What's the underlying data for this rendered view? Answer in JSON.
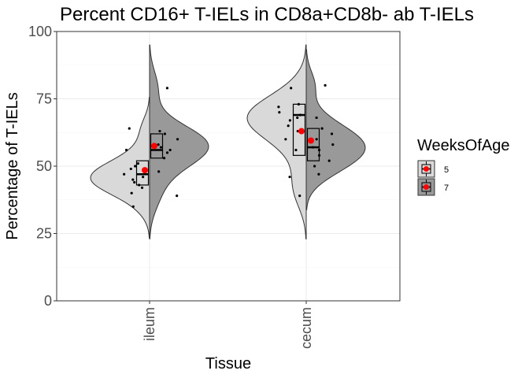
{
  "chart_data": {
    "type": "split-violin",
    "title": "Percent CD16+ T-IELs in CD8a+CD8b- ab T-IELs",
    "xlabel": "Tissue",
    "ylabel": "Percentage of T-IELs",
    "ylim": [
      0,
      100
    ],
    "yticks": [
      0,
      25,
      50,
      75,
      100
    ],
    "categories": [
      "ileum",
      "cecum"
    ],
    "grid": true,
    "legend": {
      "title": "WeeksOfAge",
      "placement": "right",
      "entries": [
        "5",
        "7"
      ]
    },
    "colors": {
      "5": "#d9d9d9",
      "7": "#999999",
      "mean": "#ff0000",
      "outline": "#333333"
    },
    "series": [
      {
        "name": "5",
        "groups": [
          {
            "category": "ileum",
            "violin_min": 35,
            "violin_max": 64,
            "violin_mode": 47,
            "box": {
              "q1": 43,
              "median": 47,
              "q3": 52
            },
            "mean": 48.5,
            "points": [
              35,
              40,
              42,
              43,
              44,
              45,
              46,
              47,
              49,
              50,
              51,
              56,
              64
            ]
          },
          {
            "category": "cecum",
            "violin_min": 39,
            "violin_max": 79,
            "violin_mode": 70,
            "box": {
              "q1": 54,
              "median": 69,
              "q3": 73
            },
            "mean": 63,
            "points": [
              39,
              46,
              56,
              60,
              63,
              65,
              67,
              68,
              69,
              70,
              72,
              73,
              79
            ]
          }
        ]
      },
      {
        "name": "7",
        "groups": [
          {
            "category": "ileum",
            "violin_min": 39,
            "violin_max": 79,
            "violin_mode": 58,
            "box": {
              "q1": 53,
              "median": 56,
              "q3": 62
            },
            "mean": 57.5,
            "points": [
              39,
              48,
              53,
              55,
              56,
              57,
              58,
              60,
              62,
              63,
              79
            ]
          },
          {
            "category": "cecum",
            "violin_min": 47,
            "violin_max": 80,
            "violin_mode": 57,
            "box": {
              "q1": 52,
              "median": 57,
              "q3": 64
            },
            "mean": 59.5,
            "points": [
              47,
              50,
              52,
              54,
              56,
              57,
              58,
              60,
              62,
              64,
              68,
              80
            ]
          }
        ]
      }
    ]
  }
}
